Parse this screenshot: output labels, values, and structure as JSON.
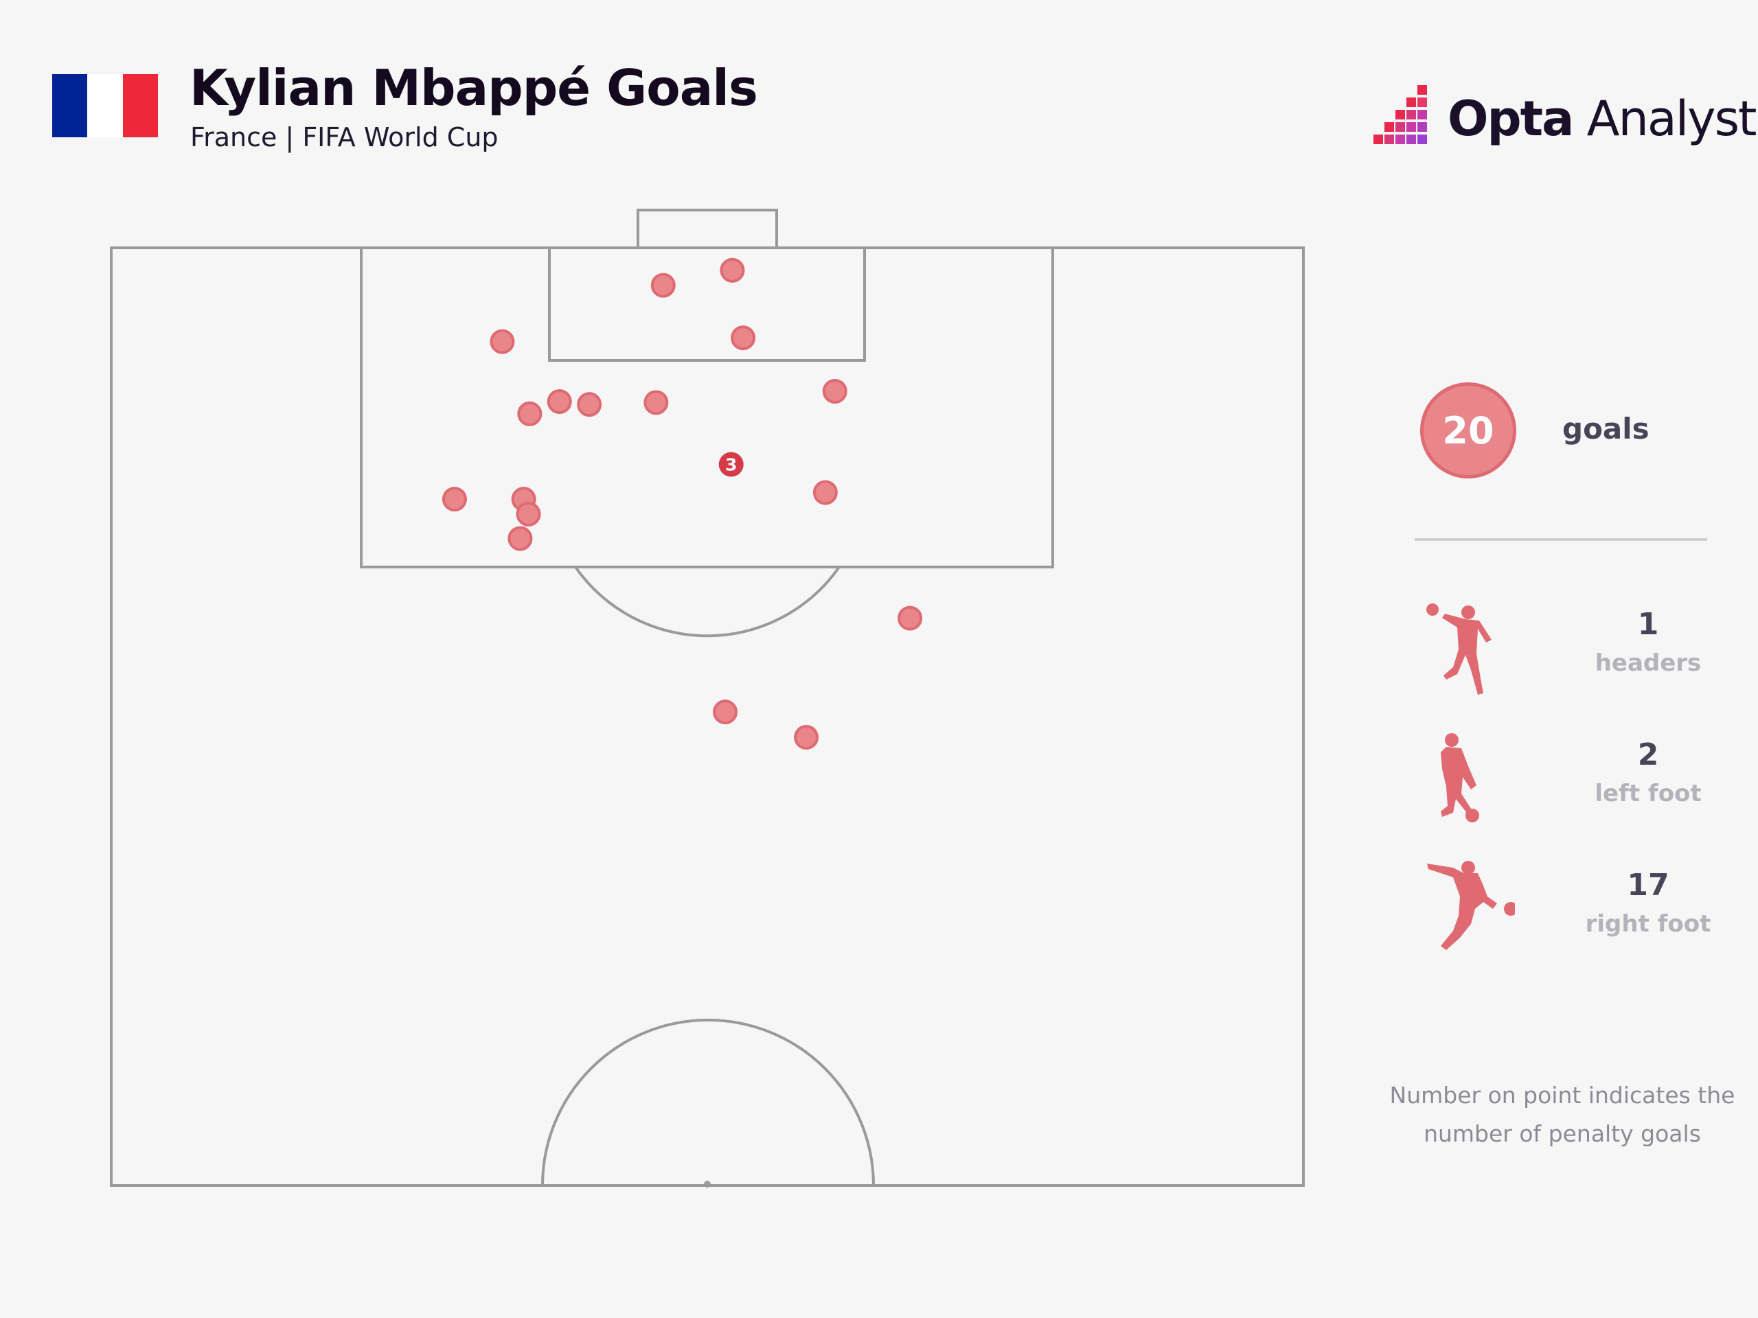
{
  "header": {
    "title": "Kylian Mbappé Goals",
    "subtitle": "France | FIFA World Cup",
    "flag_colors": [
      "#002395",
      "#ffffff",
      "#ed2939"
    ]
  },
  "logo": {
    "brand": "Opta",
    "product": " Analyst",
    "mark_colors": [
      "#e8294b",
      "#c93aa8",
      "#9b3fd6"
    ]
  },
  "colors": {
    "shot": "#e8868c",
    "shot_stroke": "#de6a72",
    "penalty": "#d63a47",
    "line": "#9a9a9a",
    "background": "#f6f6f6"
  },
  "chart_data": {
    "type": "scatter",
    "title": "Kylian Mbappé Goals",
    "subtitle": "France | FIFA World Cup",
    "x_unit": "pitch width, 0-100 (left to right)",
    "y_unit": "distance from goal line, 0-100 of half pitch",
    "points": [
      {
        "x": 52.1,
        "y": 2.4,
        "label": ""
      },
      {
        "x": 46.3,
        "y": 4.0,
        "label": ""
      },
      {
        "x": 53.0,
        "y": 9.6,
        "label": ""
      },
      {
        "x": 32.8,
        "y": 10.0,
        "label": ""
      },
      {
        "x": 60.7,
        "y": 15.3,
        "label": ""
      },
      {
        "x": 37.6,
        "y": 16.4,
        "label": ""
      },
      {
        "x": 40.1,
        "y": 16.7,
        "label": ""
      },
      {
        "x": 45.7,
        "y": 16.5,
        "label": ""
      },
      {
        "x": 35.1,
        "y": 17.7,
        "label": ""
      },
      {
        "x": 52.0,
        "y": 23.1,
        "label": "3"
      },
      {
        "x": 28.8,
        "y": 26.8,
        "label": ""
      },
      {
        "x": 34.6,
        "y": 26.8,
        "label": ""
      },
      {
        "x": 35.0,
        "y": 28.4,
        "label": ""
      },
      {
        "x": 59.9,
        "y": 26.1,
        "label": ""
      },
      {
        "x": 34.3,
        "y": 31.0,
        "label": ""
      },
      {
        "x": 67.0,
        "y": 39.5,
        "label": ""
      },
      {
        "x": 51.5,
        "y": 49.5,
        "label": ""
      },
      {
        "x": 58.3,
        "y": 52.2,
        "label": ""
      }
    ]
  },
  "summary": {
    "total": "20",
    "total_label": "goals"
  },
  "stats": [
    {
      "value": "1",
      "label": "headers",
      "icon": "header-player-icon"
    },
    {
      "value": "2",
      "label": "left foot",
      "icon": "left-foot-player-icon"
    },
    {
      "value": "17",
      "label": "right foot",
      "icon": "right-foot-player-icon"
    }
  ],
  "note": "Number on point indicates the number of penalty goals"
}
